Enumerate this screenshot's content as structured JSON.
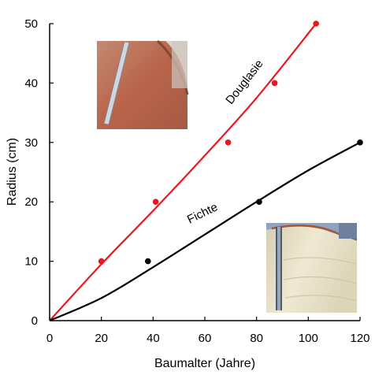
{
  "chart_data": {
    "type": "scatter",
    "title": "",
    "xlabel": "Baumalter (Jahre)",
    "ylabel": "Radius (cm)",
    "xlim": [
      0,
      120
    ],
    "ylim": [
      0,
      50
    ],
    "x_ticks": [
      0,
      20,
      40,
      60,
      80,
      100,
      120
    ],
    "y_ticks": [
      0,
      10,
      20,
      30,
      40,
      50
    ],
    "grid": false,
    "legend": "none",
    "series": [
      {
        "name": "Douglasie",
        "color": "#e8181e",
        "points": [
          [
            0,
            0
          ],
          [
            20,
            10
          ],
          [
            41,
            20
          ],
          [
            69,
            30
          ],
          [
            87,
            40
          ],
          [
            103,
            50
          ]
        ],
        "fit_curve": [
          [
            0,
            0
          ],
          [
            20,
            9.5
          ],
          [
            40,
            18.5
          ],
          [
            60,
            27.8
          ],
          [
            80,
            37.5
          ],
          [
            103,
            50
          ]
        ]
      },
      {
        "name": "Fichte",
        "color": "#000000",
        "points": [
          [
            0,
            0
          ],
          [
            38,
            10
          ],
          [
            81,
            20
          ],
          [
            120,
            30
          ]
        ],
        "fit_curve": [
          [
            0,
            0
          ],
          [
            20,
            3.8
          ],
          [
            40,
            9.0
          ],
          [
            60,
            14.5
          ],
          [
            80,
            20.0
          ],
          [
            100,
            25.3
          ],
          [
            120,
            30
          ]
        ]
      }
    ],
    "photos": [
      {
        "name": "douglas-fir-trunk-photo",
        "colors": [
          "#b9694e",
          "#c7826a",
          "#8f5a44",
          "#d9c3b5"
        ]
      },
      {
        "name": "spruce-trunk-photo",
        "colors": [
          "#e9e4cf",
          "#d8d2b6",
          "#a39c84",
          "#5b6a85"
        ]
      }
    ]
  }
}
